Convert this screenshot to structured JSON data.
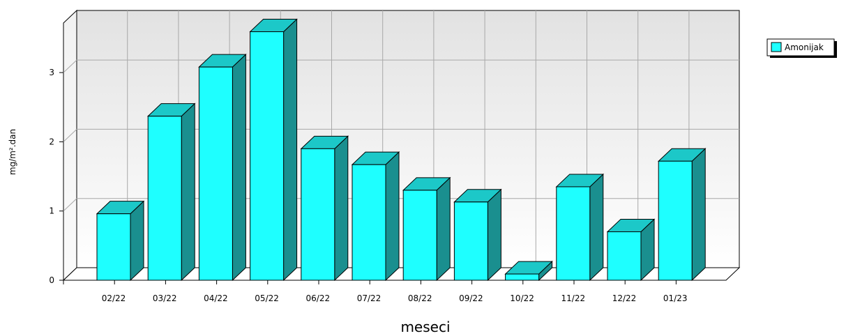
{
  "chart_data": {
    "type": "bar",
    "title": "",
    "xlabel": "meseci",
    "ylabel": "mg/m².dan",
    "categories": [
      "02/22",
      "03/22",
      "04/22",
      "05/22",
      "06/22",
      "07/22",
      "08/22",
      "09/22",
      "10/22",
      "11/22",
      "12/22",
      "01/23"
    ],
    "series": [
      {
        "name": "Amonijak",
        "values": [
          0.96,
          2.37,
          3.08,
          3.59,
          1.9,
          1.67,
          1.3,
          1.13,
          0.09,
          1.35,
          0.7,
          1.72
        ]
      }
    ],
    "ylim": [
      0,
      3.75
    ],
    "yticks": [
      0,
      1,
      2,
      3
    ],
    "grid": true,
    "legend_position": "top-right",
    "three_d": true,
    "colors": {
      "bar_front": "#1effff",
      "bar_top": "#1cc8c8",
      "bar_side": "#1a8f8f",
      "grid": "#a8a8a8",
      "legend_swatch": "#1effff"
    }
  }
}
